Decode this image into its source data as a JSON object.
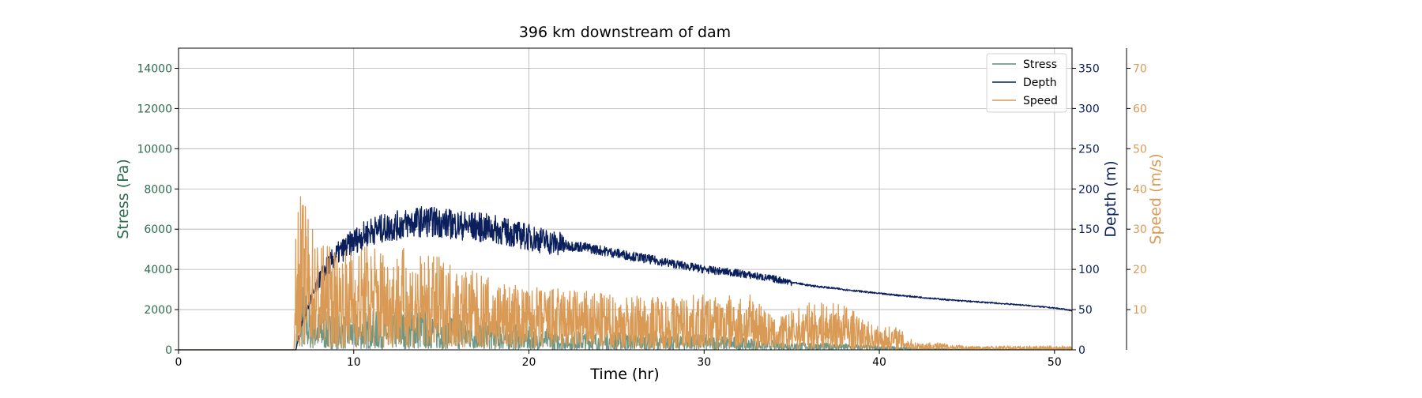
{
  "chart_data": {
    "type": "line",
    "title": "396 km downstream of dam",
    "xlabel": "Time (hr)",
    "xlim": [
      0,
      51
    ],
    "xticks": [
      0,
      10,
      20,
      30,
      40,
      50
    ],
    "grid": true,
    "legend": {
      "placement": "top-right",
      "entries": [
        "Stress",
        "Depth",
        "Speed"
      ]
    },
    "axes": {
      "stress": {
        "label": "Stress (Pa)",
        "ylim": [
          0,
          15000
        ],
        "ticks": [
          0,
          2000,
          4000,
          6000,
          8000,
          10000,
          12000,
          14000
        ],
        "color": "#2e6b4f"
      },
      "depth": {
        "label": "Depth (m)",
        "ylim": [
          0,
          375
        ],
        "ticks": [
          0,
          50,
          100,
          150,
          200,
          250,
          300,
          350
        ],
        "color": "#0a1f5c"
      },
      "speed": {
        "label": "Speed (m/s)",
        "ylim": [
          0,
          75
        ],
        "ticks": [
          10,
          20,
          30,
          40,
          50,
          60,
          70
        ],
        "color": "#d99a55"
      }
    },
    "series": [
      {
        "name": "Stress",
        "axis": "stress",
        "color": "#5f8c78",
        "x": [
          0,
          6.7,
          6.8,
          7.0,
          7.5,
          8,
          9,
          10,
          11,
          12,
          13,
          14,
          15,
          16,
          17,
          18,
          20,
          22,
          25,
          28,
          30,
          33,
          35,
          38,
          40,
          42,
          45,
          48,
          51
        ],
        "y": [
          0,
          0,
          1600,
          1900,
          1200,
          1000,
          950,
          950,
          1000,
          1000,
          1050,
          1050,
          1000,
          900,
          850,
          750,
          600,
          500,
          450,
          420,
          400,
          300,
          200,
          160,
          120,
          60,
          20,
          10,
          5
        ]
      },
      {
        "name": "Depth",
        "axis": "depth",
        "color": "#0a1f5c",
        "x": [
          0,
          6.7,
          7.0,
          7.5,
          8,
          8.5,
          9,
          10,
          11,
          12,
          13,
          14,
          15,
          16,
          17,
          18,
          19,
          20,
          21,
          22,
          23,
          24,
          25,
          26,
          27,
          28,
          29,
          30,
          32,
          34,
          36,
          38,
          40,
          42,
          44,
          46,
          48,
          50,
          51
        ],
        "y": [
          0,
          0,
          30,
          60,
          85,
          105,
          118,
          135,
          148,
          152,
          157,
          160,
          158,
          155,
          153,
          150,
          145,
          140,
          135,
          130,
          128,
          124,
          120,
          116,
          112,
          108,
          104,
          100,
          95,
          88,
          80,
          75,
          70,
          66,
          62,
          59,
          56,
          52,
          49
        ]
      },
      {
        "name": "Speed",
        "axis": "speed",
        "color": "#d99a55",
        "x": [
          0,
          6.6,
          6.7,
          6.8,
          7.0,
          7.5,
          8,
          9,
          10,
          11,
          12,
          13,
          14,
          15,
          16,
          17,
          18,
          20,
          22,
          25,
          28,
          30,
          32,
          33,
          34,
          35,
          36,
          38,
          39,
          40,
          41,
          42,
          43,
          45,
          48,
          51
        ],
        "y": [
          0,
          0,
          16,
          19,
          20,
          17,
          14,
          13,
          13,
          14,
          13,
          13,
          12,
          12,
          11,
          10,
          9,
          8,
          8,
          7,
          7,
          7,
          7,
          7,
          4,
          5,
          6,
          6,
          4,
          3,
          3,
          1,
          1,
          0.5,
          0.5,
          0.5
        ]
      }
    ]
  }
}
